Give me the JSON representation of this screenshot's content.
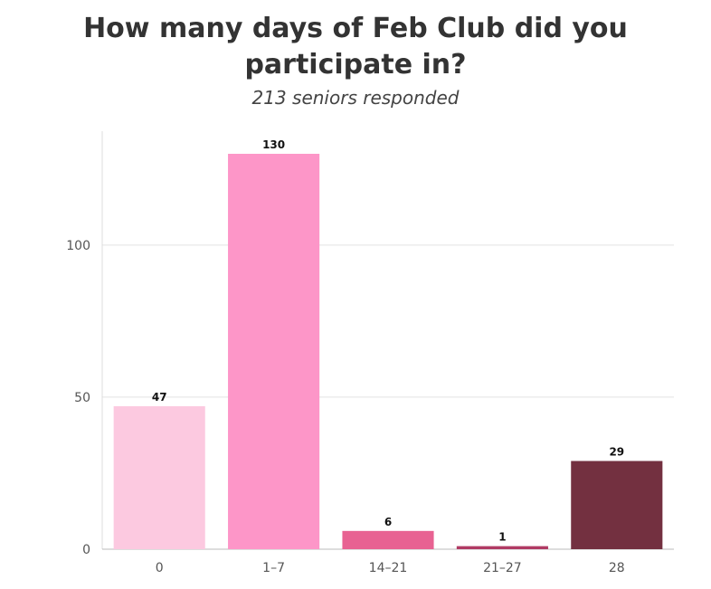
{
  "chart_data": {
    "type": "bar",
    "title": "How many days of Feb Club did you participate in?",
    "subtitle": "213 seniors responded",
    "categories": [
      "0",
      "1–7",
      "14–21",
      "21–27",
      "28"
    ],
    "values": [
      47,
      130,
      6,
      1,
      29
    ],
    "data_labels": [
      "47",
      "130",
      "6",
      "1",
      "29"
    ],
    "colors": [
      "#fcc9e0",
      "#fd96c8",
      "#e86292",
      "#b03a64",
      "#733040"
    ],
    "ylim": [
      0,
      130
    ],
    "yticks": [
      0,
      50,
      100
    ],
    "ytick_labels": [
      "0",
      "50",
      "100"
    ],
    "grid": true,
    "legend": "none",
    "xlabel": "",
    "ylabel": ""
  }
}
